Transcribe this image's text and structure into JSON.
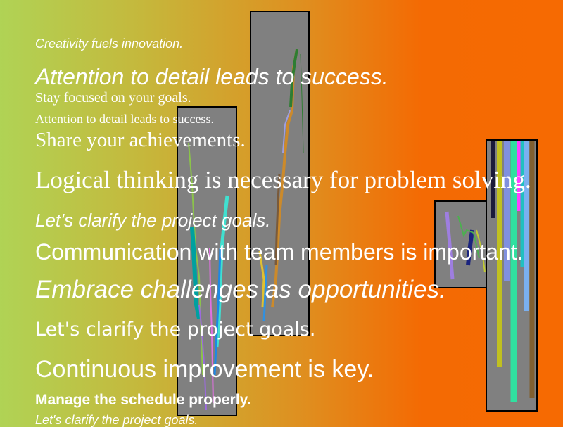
{
  "lines": [
    "Creativity fuels innovation.",
    "Attention to detail leads to success.",
    "Stay focused on your goals.",
    "Attention to detail leads to success.",
    "Share your achievements.",
    "Logical thinking is necessary for problem solving.",
    "Let's clarify the project goals.",
    "Communication with team members is important.",
    "Embrace challenges as opportunities.",
    "Let's clarify the project goals.",
    "Continuous improvement is key.",
    "Manage the schedule properly.",
    "Let's clarify the project goals."
  ],
  "colors": {
    "panel": "#808080",
    "text": "#ffffff"
  }
}
